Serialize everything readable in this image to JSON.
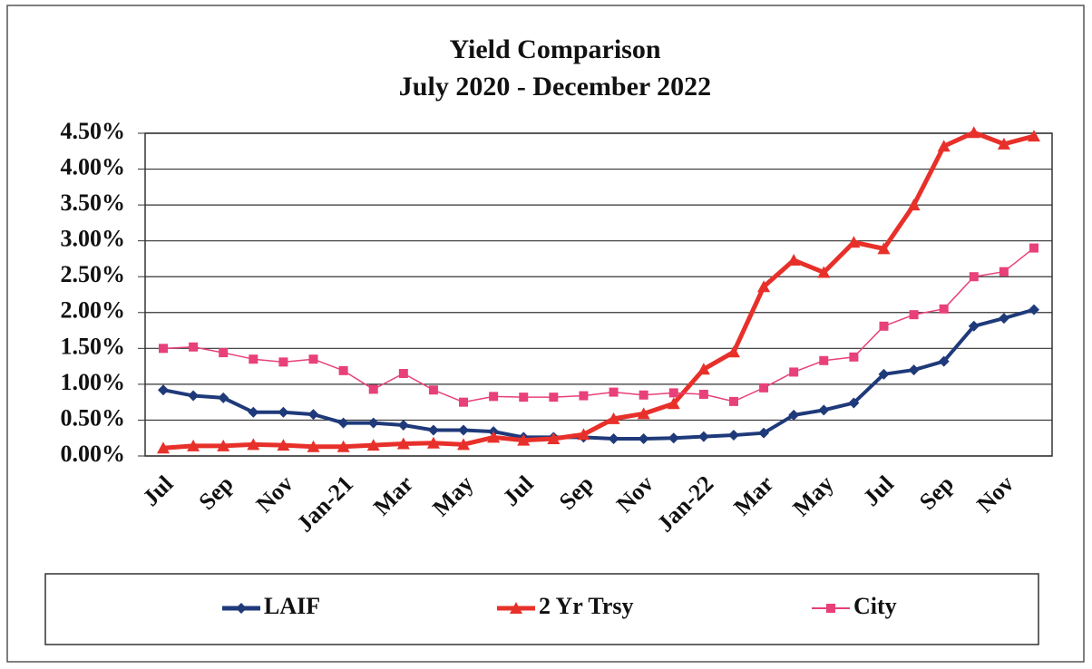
{
  "chart_data": {
    "type": "line",
    "title": "Yield Comparison",
    "subtitle": "July 2020 - December 2022",
    "categories": [
      "Jul",
      null,
      "Sep",
      null,
      "Nov",
      null,
      "Jan-21",
      null,
      "Mar",
      null,
      "May",
      null,
      "Jul",
      null,
      "Sep",
      null,
      "Nov",
      null,
      "Jan-22",
      null,
      "Mar",
      null,
      "May",
      null,
      "Jul",
      null,
      "Sep",
      null,
      "Nov",
      null
    ],
    "series": [
      {
        "name": "LAIF",
        "color": "#1f3a7a",
        "marker": "diamond",
        "values": [
          0.92,
          0.84,
          0.81,
          0.61,
          0.61,
          0.58,
          0.46,
          0.46,
          0.43,
          0.36,
          0.36,
          0.34,
          0.26,
          0.26,
          0.26,
          0.24,
          0.24,
          0.25,
          0.27,
          0.29,
          0.32,
          0.57,
          0.64,
          0.74,
          1.14,
          1.2,
          1.32,
          1.81,
          1.92,
          2.04
        ]
      },
      {
        "name": "2 Yr Trsy",
        "color": "#e8302a",
        "marker": "triangle",
        "values": [
          0.11,
          0.14,
          0.14,
          0.16,
          0.15,
          0.13,
          0.13,
          0.15,
          0.17,
          0.18,
          0.16,
          0.26,
          0.22,
          0.24,
          0.3,
          0.52,
          0.59,
          0.73,
          1.21,
          1.45,
          2.36,
          2.73,
          2.56,
          2.98,
          2.89,
          3.5,
          4.32,
          4.51,
          4.35,
          4.46
        ]
      },
      {
        "name": "City",
        "color": "#e8407a",
        "marker": "square",
        "values": [
          1.5,
          1.52,
          1.44,
          1.35,
          1.31,
          1.35,
          1.19,
          0.93,
          1.15,
          0.92,
          0.75,
          0.83,
          0.82,
          0.82,
          0.84,
          0.89,
          0.85,
          0.88,
          0.86,
          0.76,
          0.95,
          1.17,
          1.33,
          1.38,
          1.81,
          1.97,
          2.05,
          2.5,
          2.57,
          2.9
        ]
      }
    ],
    "ylim": [
      0,
      4.5
    ],
    "yticks": [
      {
        "value": 0,
        "label": "0.00%"
      },
      {
        "value": 0.5,
        "label": "0.50%"
      },
      {
        "value": 1,
        "label": "1.00%"
      },
      {
        "value": 1.5,
        "label": "1.50%"
      },
      {
        "value": 2,
        "label": "2.00%"
      },
      {
        "value": 2.5,
        "label": "2.50%"
      },
      {
        "value": 3,
        "label": "3.00%"
      },
      {
        "value": 3.5,
        "label": "3.50%"
      },
      {
        "value": 4,
        "label": "4.00%"
      },
      {
        "value": 4.5,
        "label": "4.50%"
      }
    ],
    "grid": true,
    "legend": "bottom"
  }
}
